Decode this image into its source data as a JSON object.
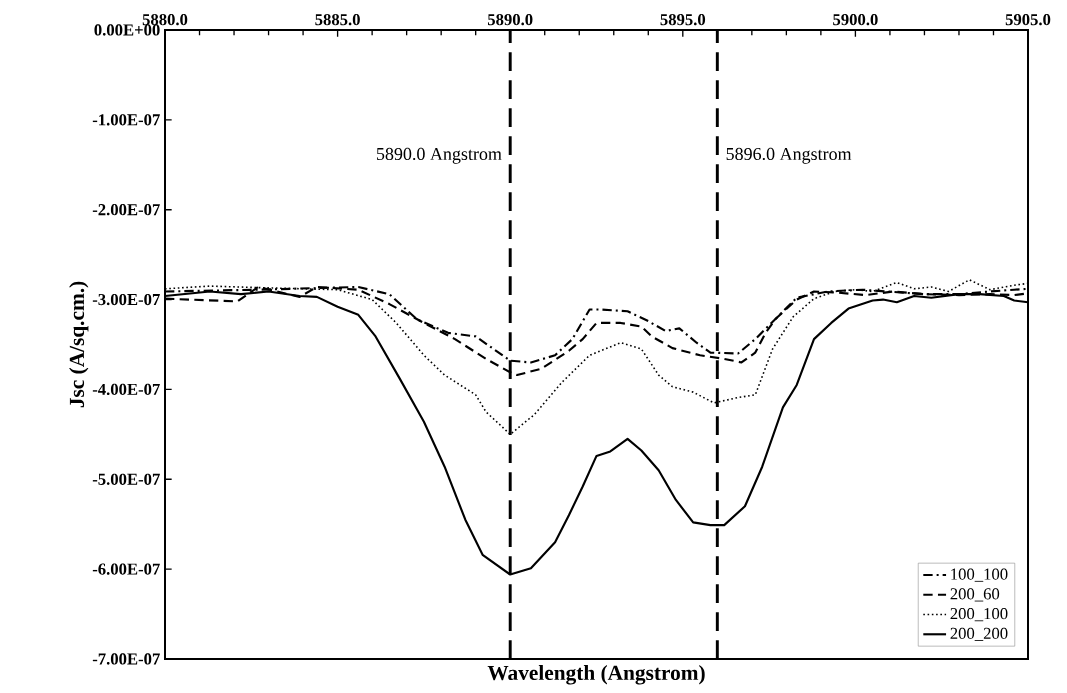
{
  "chart_data": {
    "type": "line",
    "xlabel": "Wavelength (Angstrom)",
    "ylabel": "Jsc (A/sq.cm.)",
    "xlim": [
      5880,
      5905
    ],
    "ylim": [
      -7e-07,
      0
    ],
    "xticks": [
      {
        "value": 5880,
        "label": "5880.0"
      },
      {
        "value": 5885,
        "label": "5885.0"
      },
      {
        "value": 5890,
        "label": "5890.0"
      },
      {
        "value": 5895,
        "label": "5895.0"
      },
      {
        "value": 5900,
        "label": "5900.0"
      },
      {
        "value": 5905,
        "label": "5905.0"
      }
    ],
    "yticks": [
      {
        "value": 0,
        "label": "0.00E+00"
      },
      {
        "value": -1e-07,
        "label": "-1.00E-07"
      },
      {
        "value": -2e-07,
        "label": "-2.00E-07"
      },
      {
        "value": -3e-07,
        "label": "-3.00E-07"
      },
      {
        "value": -4e-07,
        "label": "-4.00E-07"
      },
      {
        "value": -5e-07,
        "label": "-5.00E-07"
      },
      {
        "value": -6e-07,
        "label": "-6.00E-07"
      },
      {
        "value": -7e-07,
        "label": "-7.00E-07"
      }
    ],
    "grid": false,
    "legend": "bottom right",
    "marker": "none",
    "ref_lines": [
      {
        "axis": "x",
        "value": 5890.0,
        "label": "5890.0 Angstrom",
        "color": "#000000",
        "line_style": "dashed"
      },
      {
        "axis": "x",
        "value": 5896.0,
        "label": "5896.0 Angstrom",
        "color": "#000000",
        "line_style": "dashed"
      }
    ],
    "series": [
      {
        "name": "100_100",
        "color": "#000000",
        "line_style": "dashdot",
        "x": [
          5880.0,
          5882.7,
          5885.6,
          5886.5,
          5887.3,
          5888.2,
          5889.0,
          5890.0,
          5890.6,
          5891.3,
          5891.8,
          5892.3,
          5892.6,
          5893.4,
          5894.0,
          5894.5,
          5894.9,
          5895.4,
          5895.8,
          5896.6,
          5897.1,
          5897.7,
          5898.3,
          5899.2,
          5900.2,
          5900.9,
          5902.0,
          5903.0,
          5903.9,
          5904.6,
          5905.0
        ],
        "values": [
          -2.91e-07,
          -2.89e-07,
          -2.86e-07,
          -2.94e-07,
          -3.22e-07,
          -3.37e-07,
          -3.41e-07,
          -3.68e-07,
          -3.7e-07,
          -3.62e-07,
          -3.44e-07,
          -3.11e-07,
          -3.11e-07,
          -3.13e-07,
          -3.24e-07,
          -3.35e-07,
          -3.32e-07,
          -3.48e-07,
          -3.59e-07,
          -3.6e-07,
          -3.44e-07,
          -3.21e-07,
          -2.98e-07,
          -2.91e-07,
          -2.89e-07,
          -2.91e-07,
          -2.94e-07,
          -2.94e-07,
          -2.91e-07,
          -2.89e-07,
          -2.88e-07
        ]
      },
      {
        "name": "200_60",
        "color": "#000000",
        "line_style": "dashed",
        "x": [
          5880.0,
          5882.1,
          5882.7,
          5883.9,
          5884.4,
          5885.6,
          5886.5,
          5887.5,
          5888.4,
          5889.3,
          5890.0,
          5890.2,
          5890.9,
          5891.7,
          5892.1,
          5892.5,
          5893.2,
          5893.8,
          5894.1,
          5894.7,
          5895.5,
          5896.2,
          5896.7,
          5897.1,
          5897.4,
          5897.7,
          5898.3,
          5898.8,
          5899.4,
          5900.3,
          5901.1,
          5902.0,
          5903.0,
          5903.9,
          5904.6,
          5905.0
        ],
        "values": [
          -2.99e-07,
          -3.02e-07,
          -2.86e-07,
          -2.97e-07,
          -2.86e-07,
          -2.89e-07,
          -3.05e-07,
          -3.26e-07,
          -3.44e-07,
          -3.66e-07,
          -3.81e-07,
          -3.84e-07,
          -3.77e-07,
          -3.57e-07,
          -3.44e-07,
          -3.26e-07,
          -3.26e-07,
          -3.3e-07,
          -3.41e-07,
          -3.54e-07,
          -3.62e-07,
          -3.66e-07,
          -3.7e-07,
          -3.59e-07,
          -3.37e-07,
          -3.21e-07,
          -3e-07,
          -2.91e-07,
          -2.92e-07,
          -2.95e-07,
          -2.91e-07,
          -2.94e-07,
          -2.95e-07,
          -2.94e-07,
          -2.95e-07,
          -2.93e-07
        ]
      },
      {
        "name": "200_100",
        "color": "#000000",
        "line_style": "dotted",
        "x": [
          5880.0,
          5881.3,
          5883.0,
          5885.0,
          5886.0,
          5886.7,
          5887.5,
          5888.1,
          5889.0,
          5889.3,
          5890.0,
          5890.7,
          5891.5,
          5892.3,
          5893.2,
          5893.8,
          5894.3,
          5894.7,
          5895.3,
          5895.9,
          5896.6,
          5897.1,
          5897.6,
          5898.2,
          5898.8,
          5899.4,
          5900.0,
          5900.5,
          5901.2,
          5901.7,
          5902.2,
          5902.7,
          5903.3,
          5903.9,
          5904.6,
          5905.0
        ],
        "values": [
          -2.88e-07,
          -2.85e-07,
          -2.87e-07,
          -2.89e-07,
          -3e-07,
          -3.26e-07,
          -3.62e-07,
          -3.84e-07,
          -4.06e-07,
          -4.25e-07,
          -4.5e-07,
          -4.28e-07,
          -3.92e-07,
          -3.62e-07,
          -3.48e-07,
          -3.55e-07,
          -3.84e-07,
          -3.97e-07,
          -4.03e-07,
          -4.15e-07,
          -4.09e-07,
          -4.06e-07,
          -3.55e-07,
          -3.19e-07,
          -2.99e-07,
          -2.91e-07,
          -2.89e-07,
          -2.91e-07,
          -2.81e-07,
          -2.88e-07,
          -2.86e-07,
          -2.91e-07,
          -2.78e-07,
          -2.89e-07,
          -2.84e-07,
          -2.82e-07
        ]
      },
      {
        "name": "200_200",
        "color": "#000000",
        "line_style": "solid",
        "x": [
          5880.0,
          5881.3,
          5882.2,
          5883.0,
          5883.9,
          5884.4,
          5885.0,
          5885.6,
          5886.1,
          5886.8,
          5887.5,
          5888.1,
          5888.7,
          5889.2,
          5890.0,
          5890.6,
          5891.3,
          5891.7,
          5892.1,
          5892.5,
          5892.9,
          5893.4,
          5893.8,
          5894.3,
          5894.8,
          5895.3,
          5895.8,
          5896.2,
          5896.8,
          5897.3,
          5897.9,
          5898.3,
          5898.8,
          5899.3,
          5899.8,
          5900.5,
          5900.8,
          5901.2,
          5901.7,
          5902.2,
          5903.0,
          5903.6,
          5904.3,
          5904.6,
          5905.0
        ],
        "values": [
          -2.96e-07,
          -2.91e-07,
          -2.94e-07,
          -2.91e-07,
          -2.96e-07,
          -2.97e-07,
          -3.08e-07,
          -3.17e-07,
          -3.41e-07,
          -3.88e-07,
          -4.36e-07,
          -4.86e-07,
          -5.45e-07,
          -5.84e-07,
          -6.06e-07,
          -5.99e-07,
          -5.7e-07,
          -5.4e-07,
          -5.08e-07,
          -4.74e-07,
          -4.69e-07,
          -4.55e-07,
          -4.68e-07,
          -4.9e-07,
          -5.23e-07,
          -5.48e-07,
          -5.51e-07,
          -5.51e-07,
          -5.3e-07,
          -4.86e-07,
          -4.2e-07,
          -3.95e-07,
          -3.44e-07,
          -3.26e-07,
          -3.1e-07,
          -3.01e-07,
          -3e-07,
          -3.03e-07,
          -2.96e-07,
          -2.98e-07,
          -2.94e-07,
          -2.94e-07,
          -2.96e-07,
          -3.01e-07,
          -3.03e-07
        ]
      }
    ]
  }
}
